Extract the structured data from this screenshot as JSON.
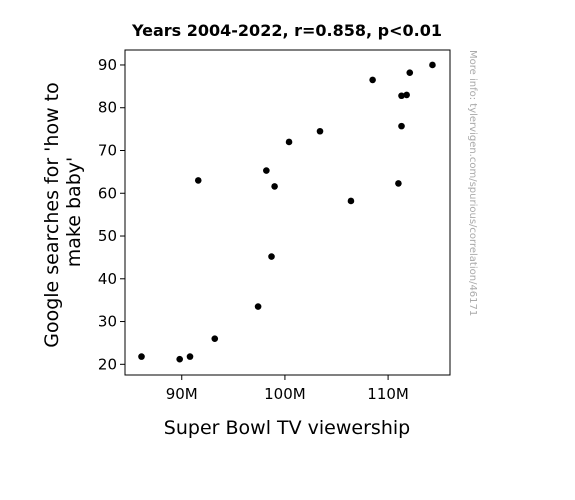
{
  "chart_data": {
    "type": "scatter",
    "title": "Years 2004-2022, r=0.858, p<0.01",
    "xlabel": "Super Bowl TV viewership",
    "ylabel_lines": [
      "Google searches for 'how to",
      "make baby'"
    ],
    "xlim": [
      84500000,
      116000000
    ],
    "ylim": [
      17.5,
      93.5
    ],
    "x_ticks": [
      {
        "value": 90000000,
        "label": "90M"
      },
      {
        "value": 100000000,
        "label": "100M"
      },
      {
        "value": 110000000,
        "label": "110M"
      }
    ],
    "y_ticks": [
      {
        "value": 20,
        "label": "20"
      },
      {
        "value": 30,
        "label": "30"
      },
      {
        "value": 40,
        "label": "40"
      },
      {
        "value": 50,
        "label": "50"
      },
      {
        "value": 60,
        "label": "60"
      },
      {
        "value": 70,
        "label": "70"
      },
      {
        "value": 80,
        "label": "80"
      },
      {
        "value": 90,
        "label": "90"
      }
    ],
    "points": [
      {
        "x": 86100000,
        "y": 21.8
      },
      {
        "x": 89800000,
        "y": 21.2
      },
      {
        "x": 90800000,
        "y": 21.8
      },
      {
        "x": 91600000,
        "y": 63.0
      },
      {
        "x": 93200000,
        "y": 26.0
      },
      {
        "x": 97400000,
        "y": 33.5
      },
      {
        "x": 98200000,
        "y": 65.3
      },
      {
        "x": 98700000,
        "y": 45.2
      },
      {
        "x": 99000000,
        "y": 61.6
      },
      {
        "x": 100400000,
        "y": 72.0
      },
      {
        "x": 103400000,
        "y": 74.5
      },
      {
        "x": 106400000,
        "y": 58.2
      },
      {
        "x": 108500000,
        "y": 86.5
      },
      {
        "x": 111000000,
        "y": 62.3
      },
      {
        "x": 111300000,
        "y": 75.7
      },
      {
        "x": 111300000,
        "y": 82.8
      },
      {
        "x": 111800000,
        "y": 83.0
      },
      {
        "x": 112100000,
        "y": 88.2
      },
      {
        "x": 114300000,
        "y": 90.0
      }
    ],
    "grid": false,
    "marker_color": "#000000"
  },
  "watermark": "More info: tylervigen.com/spurious/correlation/46171"
}
